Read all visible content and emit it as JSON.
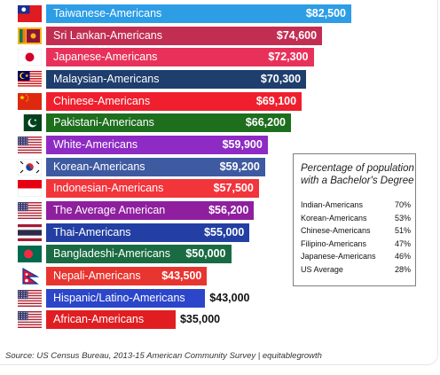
{
  "chart_data": {
    "type": "bar",
    "orientation": "horizontal",
    "title": "",
    "xlabel": "",
    "ylabel": "",
    "xlim": [
      0,
      82500
    ],
    "grid": false,
    "categories": [
      "Taiwanese-Americans",
      "Sri Lankan-Americans",
      "Japanese-Americans",
      "Malaysian-Americans",
      "Chinese-Americans",
      "Pakistani-Americans",
      "White-Americans",
      "Korean-Americans",
      "Indonesian-Americans",
      "The Average American",
      "Thai-Americans",
      "Bangladeshi-Americans",
      "Nepali-Americans",
      "Hispanic/Latino-Americans",
      "African-Americans"
    ],
    "values": [
      82500,
      74600,
      72300,
      70300,
      69100,
      66200,
      59900,
      59200,
      57500,
      56200,
      55000,
      50000,
      43500,
      43000,
      35000
    ],
    "value_labels": [
      "$82,500",
      "$74,600",
      "$72,300",
      "$70,300",
      "$69,100",
      "$66,200",
      "$59,900",
      "$59,200",
      "$57,500",
      "$56,200",
      "$55,000",
      "$50,000",
      "$43,500",
      "$43,000",
      "$35,000"
    ],
    "bar_colors": [
      "#2d9de6",
      "#c22e52",
      "#e8315a",
      "#1e3e6d",
      "#f01f2e",
      "#1d6e1d",
      "#8e2bc4",
      "#3e5aa0",
      "#f2343b",
      "#8f1f9f",
      "#233fa3",
      "#1a6b43",
      "#e8352f",
      "#2b46c9",
      "#e01e22"
    ],
    "flags": [
      "taiwan-flag",
      "sri-lanka-flag",
      "japan-flag",
      "malaysia-flag",
      "china-flag",
      "pakistan-flag",
      "usa-flag",
      "south-korea-flag",
      "indonesia-flag",
      "usa-flag",
      "thailand-flag",
      "bangladesh-flag",
      "nepal-flag",
      "usa-flag",
      "usa-flag"
    ],
    "inset_table": {
      "title": "Percentage of population with a Bachelor's Degree",
      "rows": [
        {
          "label": "Indian-Americans",
          "value": "70%"
        },
        {
          "label": "Korean-Americans",
          "value": "53%"
        },
        {
          "label": "Chinese-Americans",
          "value": "51%"
        },
        {
          "label": "Filipino-Americans",
          "value": "47%"
        },
        {
          "label": "Japanese-Americans",
          "value": "46%"
        },
        {
          "label": "US Average",
          "value": "28%"
        }
      ]
    }
  },
  "source": "Source: US Census Bureau, 2013-15 American Community Survey | equitablegrowth"
}
